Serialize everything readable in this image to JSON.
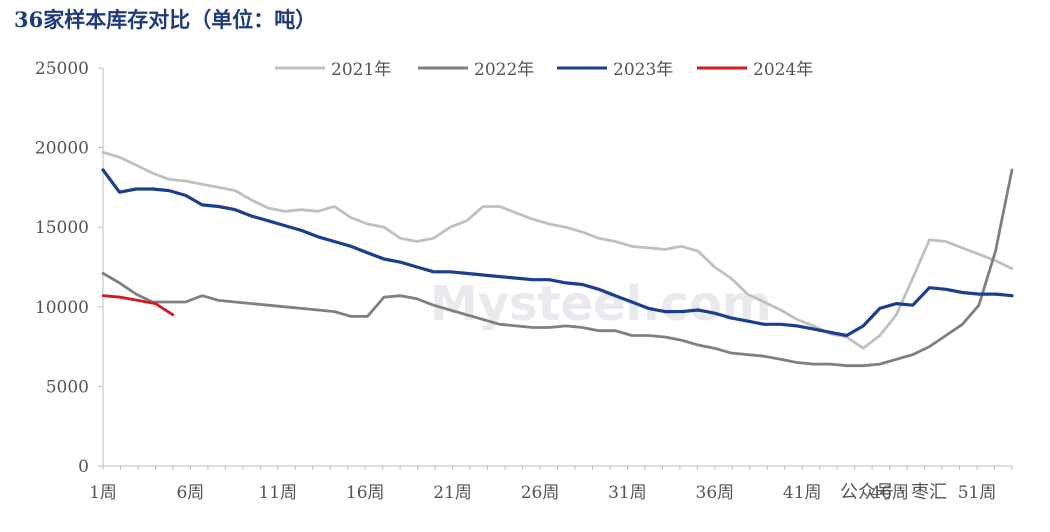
{
  "chart_data": {
    "type": "line",
    "title": "36家样本库存对比（单位：吨）",
    "ylim": [
      0,
      25000
    ],
    "yticks": [
      "0",
      "5000",
      "10000",
      "15000",
      "20000",
      "25000"
    ],
    "x_tick_labels": [
      "1周",
      "6周",
      "11周",
      "16周",
      "21周",
      "26周",
      "31周",
      "36周",
      "41周",
      "46周",
      "51周"
    ],
    "x_tick_weeks": [
      1,
      6,
      11,
      16,
      21,
      26,
      31,
      36,
      41,
      46,
      51
    ],
    "x_range": [
      1,
      53
    ],
    "legend_position": "top-center",
    "grid": false,
    "series": [
      {
        "name": "2021年",
        "color": "#c0c0c0",
        "values": [
          19700,
          19400,
          18900,
          18400,
          18000,
          17900,
          17700,
          17500,
          17300,
          16700,
          16200,
          16000,
          16100,
          16000,
          16300,
          15600,
          15200,
          15000,
          14300,
          14100,
          14300,
          15000,
          15400,
          16300,
          16300,
          15900,
          15500,
          15200,
          15000,
          14700,
          14300,
          14100,
          13800,
          13700,
          13600,
          13800,
          13500,
          12500,
          11800,
          10800,
          10300,
          9800,
          9200,
          8800,
          8300,
          8100,
          7400,
          8200,
          9500,
          11800,
          14200,
          14100,
          13700,
          13300,
          12900,
          12400
        ]
      },
      {
        "name": "2022年",
        "color": "#808080",
        "values": [
          12100,
          11500,
          10800,
          10300,
          10300,
          10300,
          10700,
          10400,
          10300,
          10200,
          10100,
          10000,
          9900,
          9800,
          9700,
          9400,
          9400,
          10600,
          10700,
          10500,
          10100,
          9800,
          9500,
          9200,
          8900,
          8800,
          8700,
          8700,
          8800,
          8700,
          8500,
          8500,
          8200,
          8200,
          8100,
          7900,
          7600,
          7400,
          7100,
          7000,
          6900,
          6700,
          6500,
          6400,
          6400,
          6300,
          6300,
          6400,
          6700,
          7000,
          7500,
          8200,
          8900,
          10100,
          13500,
          18600
        ]
      },
      {
        "name": "2023年",
        "color": "#1a3f8f",
        "values": [
          18600,
          17200,
          17400,
          17400,
          17300,
          17000,
          16400,
          16300,
          16100,
          15700,
          15400,
          15100,
          14800,
          14400,
          14100,
          13800,
          13400,
          13000,
          12800,
          12500,
          12200,
          12200,
          12100,
          12000,
          11900,
          11800,
          11700,
          11700,
          11500,
          11400,
          11100,
          10700,
          10300,
          9900,
          9700,
          9700,
          9800,
          9600,
          9300,
          9100,
          8900,
          8900,
          8800,
          8600,
          8400,
          8200,
          8800,
          9900,
          10200,
          10100,
          11200,
          11100,
          10900,
          10800,
          10800,
          10700
        ]
      },
      {
        "name": "2024年",
        "color": "#d01c1c",
        "values": [
          10700,
          10600,
          10400,
          10200,
          9500
        ]
      }
    ]
  },
  "watermark": {
    "text": "Mysteel.com"
  },
  "credit": {
    "text": "公众号 · 枣汇"
  }
}
